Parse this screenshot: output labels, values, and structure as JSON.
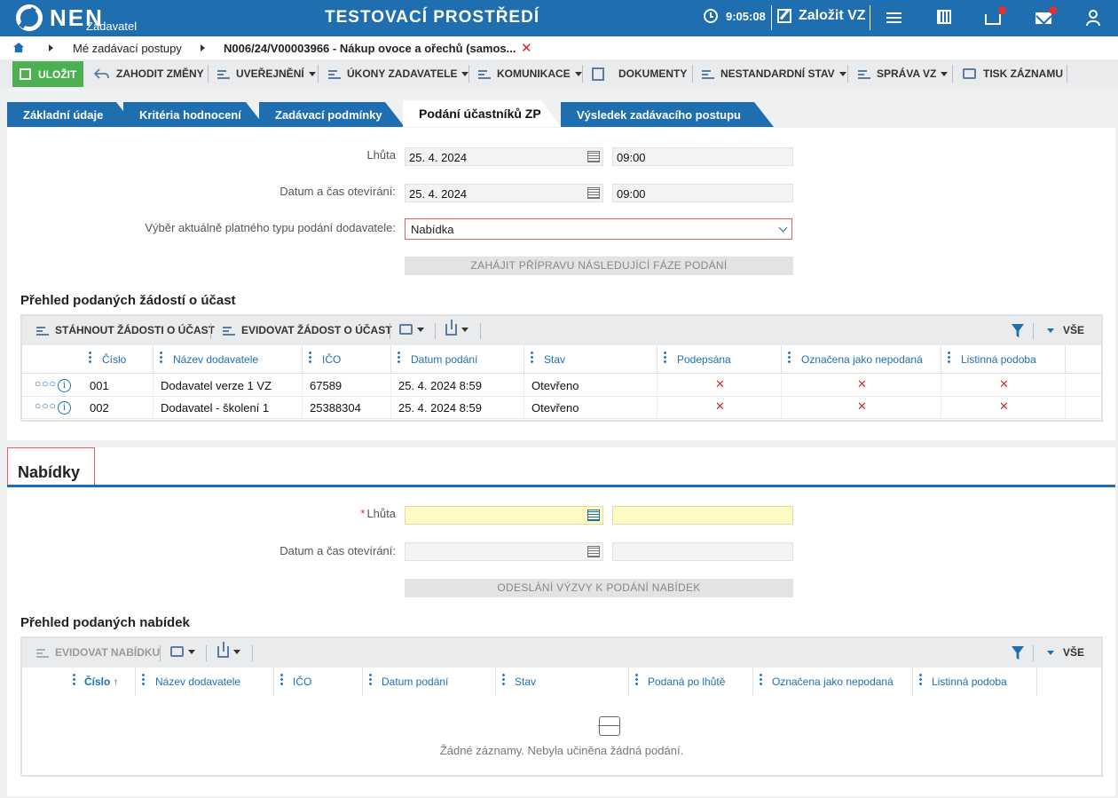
{
  "header": {
    "logo": "NEN",
    "logo_sub": "Zadavatel",
    "env_title": "TESTOVACÍ PROSTŘEDÍ",
    "time": "9:05:08",
    "create_vz": "Založit VZ",
    "icons": [
      "menu-icon",
      "calculator-icon",
      "inbox-icon",
      "mail-icon",
      "user-icon"
    ]
  },
  "breadcrumb": {
    "items": [
      "Mé zadávací postupy",
      "N006/24/V00003966 - Nákup ovoce a ořechů (samos..."
    ],
    "close": "✕"
  },
  "toolbar": {
    "save": "ULOŽIT",
    "discard": "ZAHODIT ZMĚNY",
    "publish": "UVEŘEJNĚNÍ",
    "actions": "ÚKONY ZADAVATELE",
    "communication": "KOMUNIKACE",
    "documents": "DOKUMENTY",
    "nonstandard": "NESTANDARDNÍ STAV",
    "manage": "SPRÁVA VZ",
    "print": "TISK ZÁZNAMU"
  },
  "tabs": [
    {
      "label": "Základní údaje",
      "active": false
    },
    {
      "label": "Kritéria hodnocení",
      "active": false
    },
    {
      "label": "Zadávací podmínky",
      "active": false
    },
    {
      "label": "Podání účastníků ZP",
      "active": true
    },
    {
      "label": "Výsledek zadávacího postupu",
      "active": false
    }
  ],
  "form1": {
    "deadline_label": "Lhůta",
    "deadline_date": "25. 4. 2024",
    "deadline_time": "09:00",
    "opening_label": "Datum a čas otevírání:",
    "opening_date": "25. 4. 2024",
    "opening_time": "09:00",
    "type_label": "Výběr aktuálně platného typu podání dodavatele:",
    "type_value": "Nabídka",
    "next_phase": "ZAHÁJIT PŘÍPRAVU NÁSLEDUJÍCÍ FÁZE PODÁNÍ"
  },
  "requests": {
    "title": "Přehled podaných žádostí o účast",
    "download": "STÁHNOUT ŽÁDOSTI O ÚČAST",
    "record": "EVIDOVAT ŽÁDOST O ÚČAST",
    "all": "VŠE",
    "columns": [
      "Číslo",
      "Název dodavatele",
      "IČO",
      "Datum podání",
      "Stav",
      "Podepsána",
      "Označena jako nepodaná",
      "Listinná podoba"
    ],
    "rows": [
      {
        "number": "001",
        "supplier": "Dodavatel verze 1 VZ",
        "ico": "67589",
        "date": "25. 4. 2024 8:59",
        "state": "Otevřeno",
        "mark": "✕"
      },
      {
        "number": "002",
        "supplier": "Dodavatel - školení 1",
        "ico": "25388304",
        "date": "25. 4. 2024 8:59",
        "state": "Otevřeno",
        "mark": "✕"
      }
    ]
  },
  "offers_section": {
    "title": "Nabídky",
    "deadline_label": "Lhůta",
    "opening_label": "Datum a čas otevírání:",
    "send_call": "ODESLÁNÍ VÝZVY K PODÁNÍ NABÍDEK"
  },
  "offers": {
    "title": "Přehled podaných nabídek",
    "record": "EVIDOVAT NABÍDKU",
    "all": "VŠE",
    "columns": [
      "Číslo ↑",
      "Název dodavatele",
      "IČO",
      "Datum podání",
      "Stav",
      "Podaná po lhůtě",
      "Označena jako nepodaná",
      "Listinná podoba"
    ],
    "empty": "Žádné záznamy. Nebyla učiněna žádná podání."
  },
  "colors": {
    "primary": "#1f6fb0",
    "save": "#4caf50",
    "required_bg": "#fff9c4",
    "error": "#d32f2f"
  }
}
